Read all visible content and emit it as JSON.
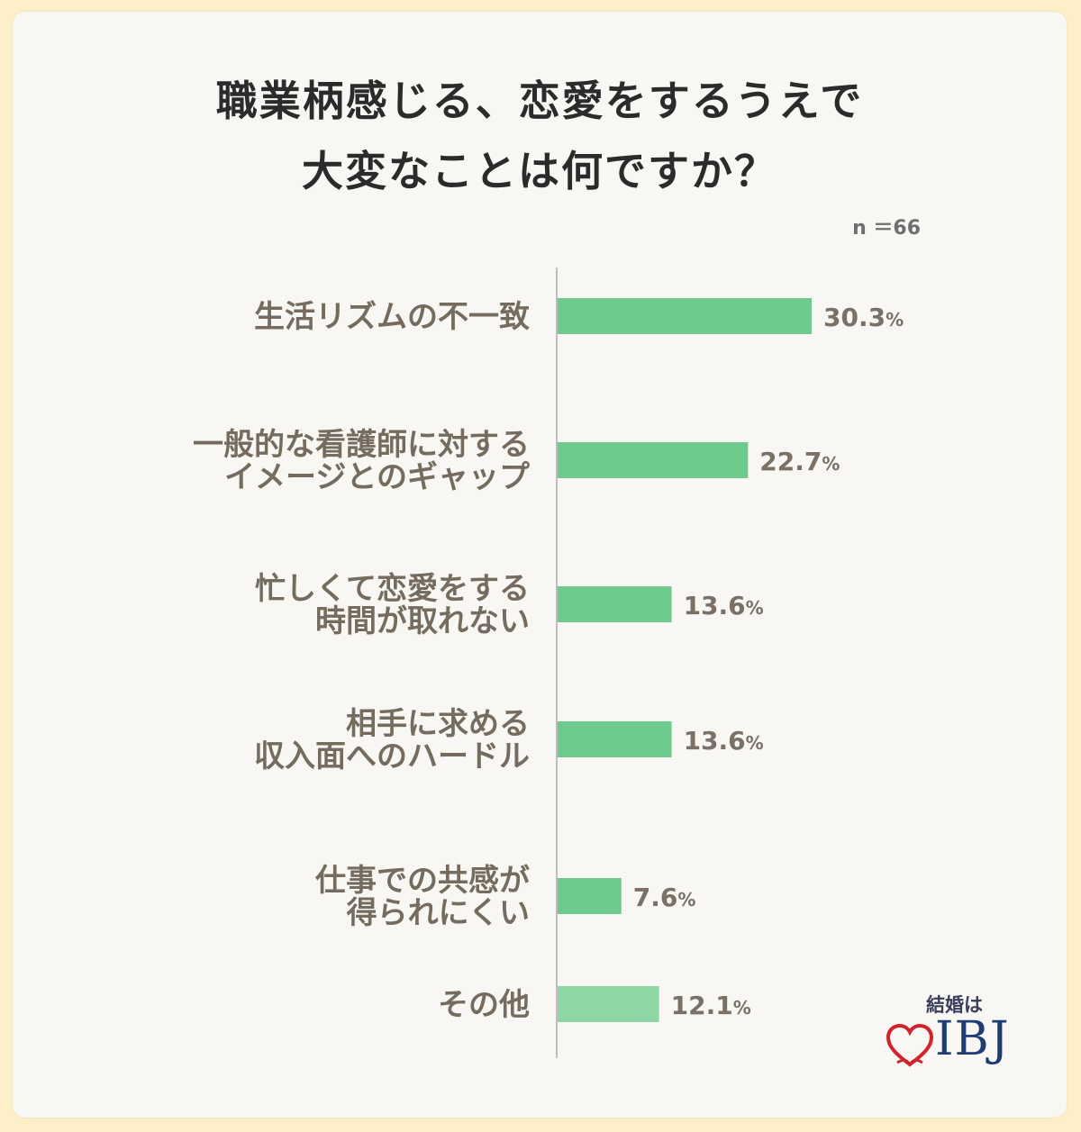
{
  "title_lines": [
    "職業柄感じる、恋愛をするうえで",
    "大変なことは何ですか？"
  ],
  "sample_size": "n ＝66",
  "logo": {
    "tagline": "結婚は",
    "brand": "IBJ",
    "icon": "heart-icon",
    "brand_color": "#1f3d73",
    "heart_color": "#d2232a"
  },
  "colors": {
    "bar": "#6ccb8c",
    "bar_light": "#8ed6a4",
    "axis": "#bdbdbd",
    "background": "#fdf0c8"
  },
  "chart_data": {
    "type": "bar",
    "orientation": "horizontal",
    "unit": "%",
    "categories": [
      [
        "生活リズムの不一致"
      ],
      [
        "一般的な看護師に対する",
        "イメージとのギャップ"
      ],
      [
        "忙しくて恋愛をする",
        "時間が取れない"
      ],
      [
        "相手に求める",
        "収入面へのハードル"
      ],
      [
        "仕事での共感が",
        "得られにくい"
      ],
      [
        "その他"
      ]
    ],
    "values": [
      30.3,
      22.7,
      13.6,
      13.6,
      7.6,
      12.1
    ],
    "value_labels": [
      "30.3",
      "22.7",
      "13.6",
      "13.6",
      "7.6",
      "12.1"
    ],
    "xlim": [
      0,
      30.3
    ],
    "grid": false,
    "legend": "none"
  }
}
